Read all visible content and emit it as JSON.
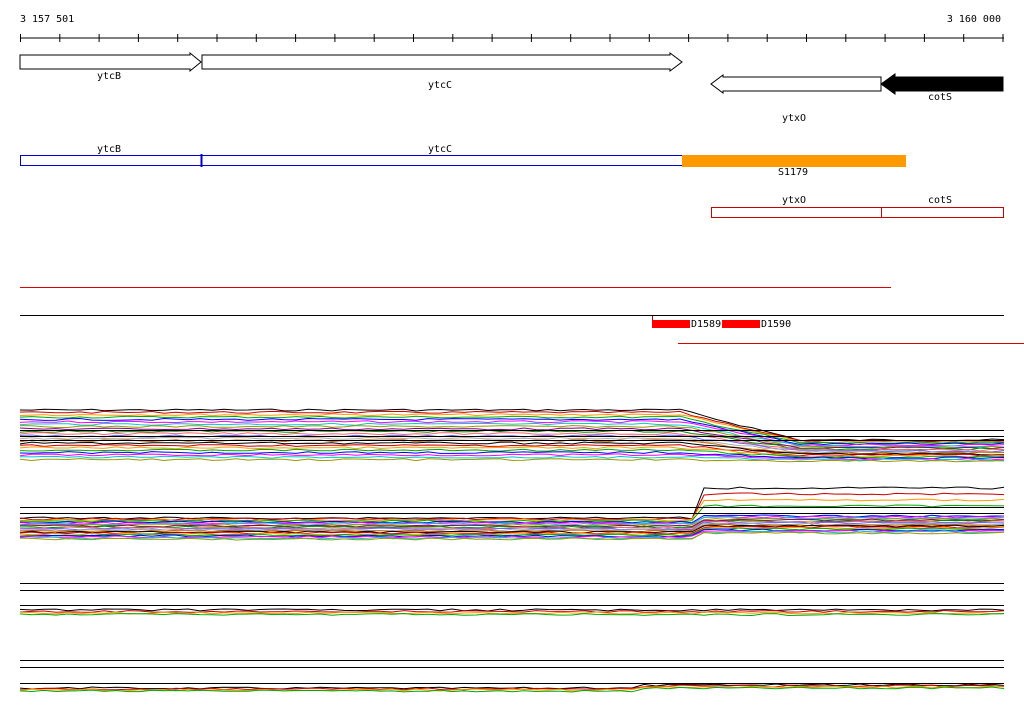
{
  "ruler": {
    "start": "3 157 501",
    "end": "3 160 000"
  },
  "genes": [
    {
      "label": "ytcB"
    },
    {
      "label": "ytcC"
    },
    {
      "label": "ytxO"
    },
    {
      "label": "cotS"
    }
  ],
  "transcripts": [
    {
      "label": "ytcB"
    },
    {
      "label": "ytcC"
    },
    {
      "label": "S1179"
    }
  ],
  "operons": [
    {
      "label": "ytxO"
    },
    {
      "label": "cotS"
    }
  ],
  "features": [
    {
      "label": "D1589"
    },
    {
      "label": "D1590"
    }
  ]
}
